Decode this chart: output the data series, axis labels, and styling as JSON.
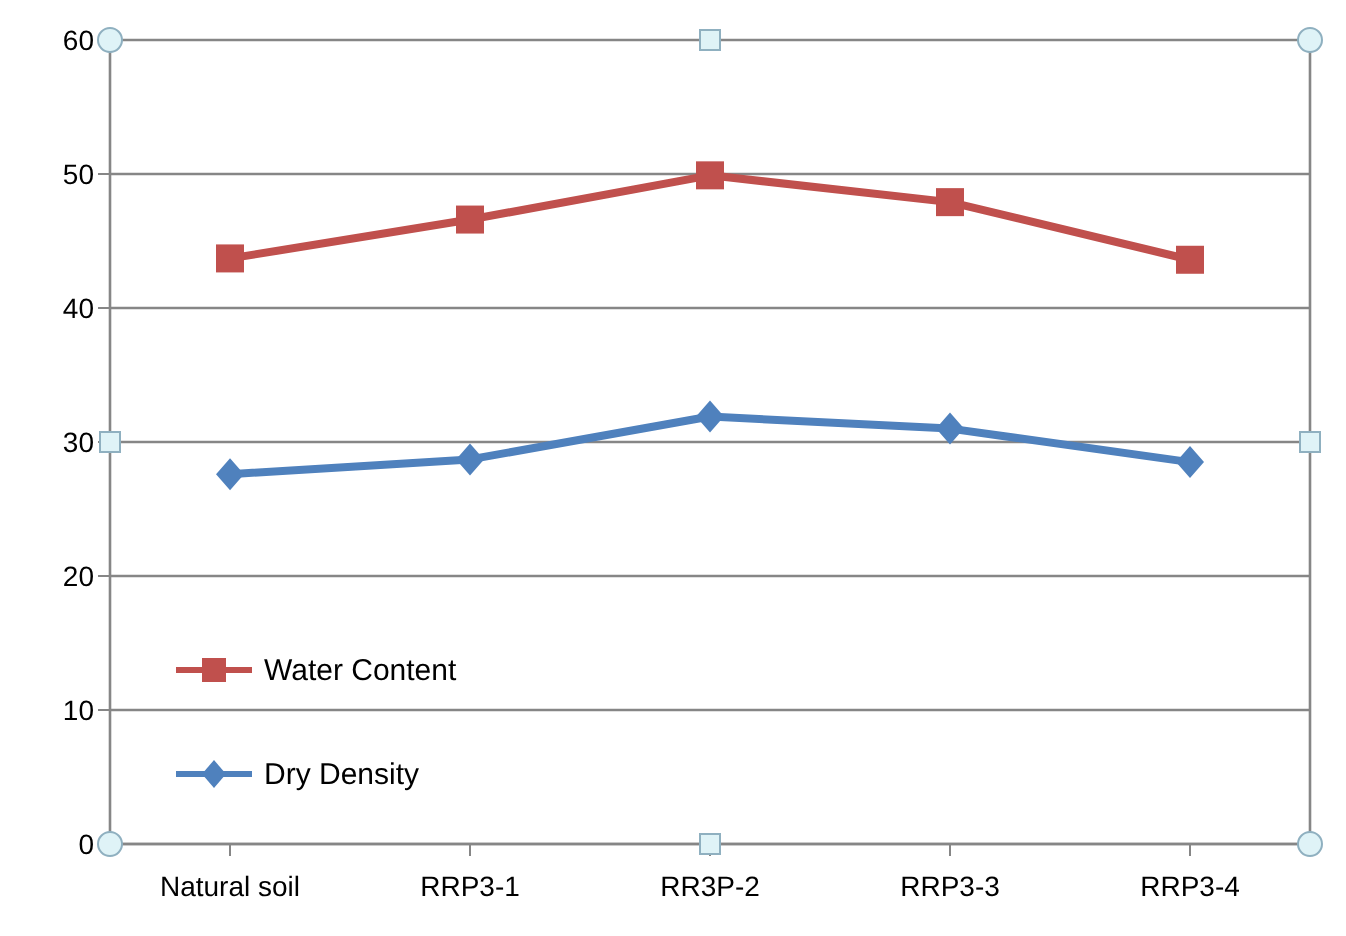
{
  "chart_data": {
    "type": "line",
    "categories": [
      "Natural soil",
      "RRP3-1",
      "RR3P-2",
      "RRP3-3",
      "RRP3-4"
    ],
    "series": [
      {
        "name": "Water Content",
        "color": "#c0504d",
        "marker": "square",
        "values": [
          43.7,
          46.6,
          49.9,
          47.9,
          43.6
        ]
      },
      {
        "name": "Dry Density",
        "color": "#4f81bd",
        "marker": "diamond",
        "values": [
          27.6,
          28.7,
          31.9,
          31.0,
          28.5
        ]
      }
    ],
    "ylim": [
      0,
      60
    ],
    "yticks": [
      0,
      10,
      20,
      30,
      40,
      50,
      60
    ],
    "grid": "y",
    "legend": "bottom left",
    "line_style": "solid"
  }
}
